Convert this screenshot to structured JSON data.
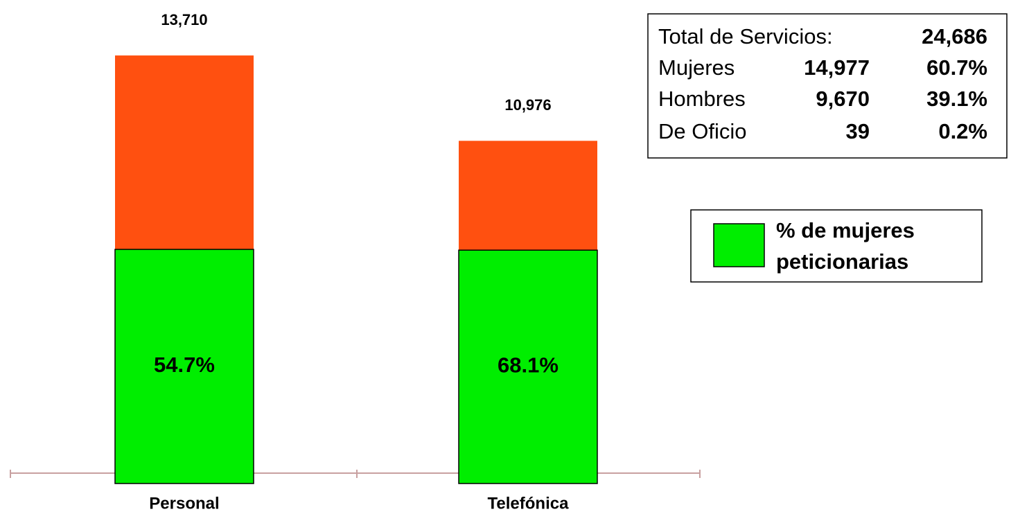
{
  "chart_data": {
    "type": "bar",
    "categories": [
      "Personal",
      "Telefónica"
    ],
    "values": [
      13710,
      10976
    ],
    "value_labels": [
      "13,710",
      "10,976"
    ],
    "color": "#ff5010",
    "series": [
      {
        "name": "% de mujeres peticionarias",
        "color": "#00ee00",
        "values": [
          54.7,
          68.1
        ],
        "value_labels": [
          "54.7%",
          "68.1%"
        ]
      }
    ],
    "ylim": [
      0,
      14000
    ],
    "legend": "right",
    "summary": {
      "rows": [
        [
          "Total de Servicios:",
          "24,686"
        ],
        [
          "Mujeres",
          "14,977",
          "60.7%"
        ],
        [
          "Hombres",
          "9,670",
          "39.1%"
        ],
        [
          "De Oficio",
          "39",
          "0.2%"
        ]
      ]
    }
  }
}
